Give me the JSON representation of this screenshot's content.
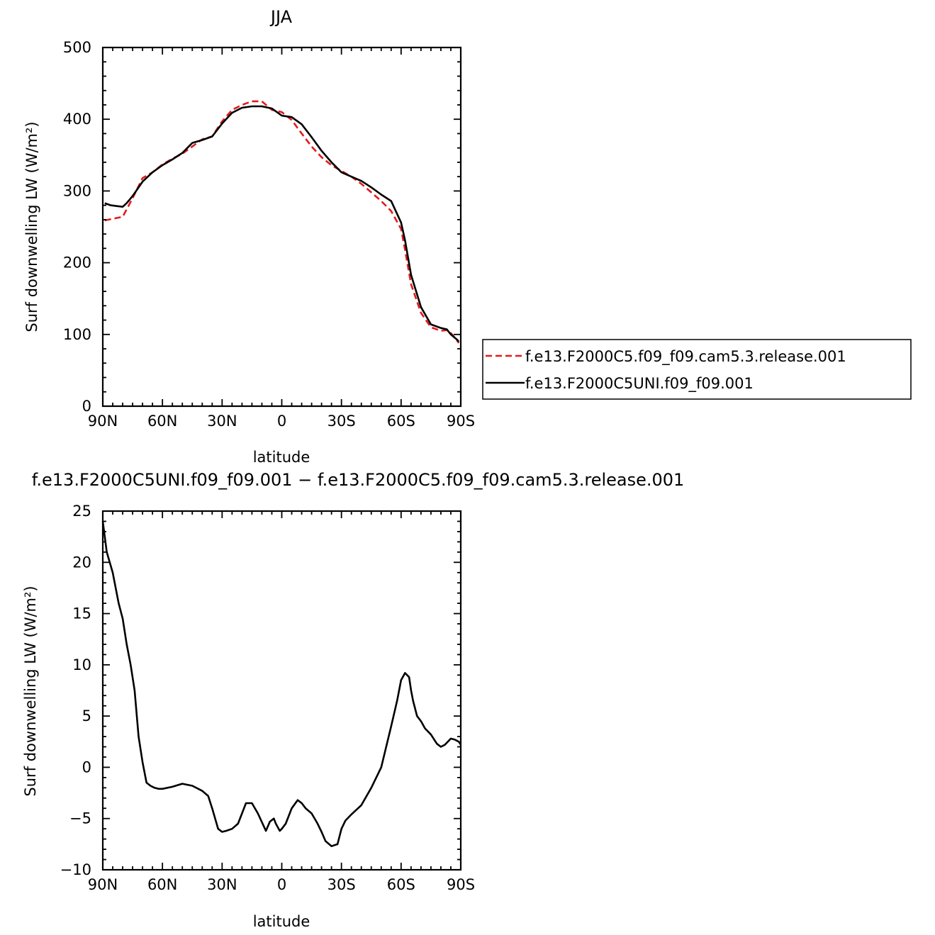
{
  "chart_data": [
    {
      "type": "line",
      "title": "JJA",
      "xlabel": "latitude",
      "ylabel": "Surf downwelling LW (W/m²)",
      "xlim": [
        90,
        -90
      ],
      "ylim": [
        0,
        500
      ],
      "x_ticks": [
        {
          "value": 90,
          "label": "90N"
        },
        {
          "value": 60,
          "label": "60N"
        },
        {
          "value": 30,
          "label": "30N"
        },
        {
          "value": 0,
          "label": "0"
        },
        {
          "value": -30,
          "label": "30S"
        },
        {
          "value": -60,
          "label": "60S"
        },
        {
          "value": -90,
          "label": "90S"
        }
      ],
      "y_ticks": [
        0,
        100,
        200,
        300,
        400,
        500
      ],
      "legend_position": "right",
      "series": [
        {
          "name": "f.e13.F2000C5.f09_f09.cam5.3.release.001",
          "color": "#e41a1c",
          "dash": "dashed",
          "x": [
            89,
            80,
            75,
            70,
            65,
            60,
            55,
            50,
            45,
            40,
            35,
            30,
            25,
            20,
            15,
            10,
            5,
            0,
            -5,
            -10,
            -15,
            -20,
            -25,
            -30,
            -35,
            -40,
            -45,
            -50,
            -55,
            -60,
            -62,
            -65,
            -70,
            -75,
            -80,
            -83,
            -85,
            -88,
            -89
          ],
          "values": [
            259,
            264,
            290,
            318,
            326,
            337,
            345,
            352,
            362,
            372,
            376,
            397,
            413,
            420,
            425,
            425,
            413,
            410,
            399,
            380,
            362,
            347,
            336,
            328,
            320,
            310,
            298,
            286,
            272,
            247,
            218,
            170,
            130,
            110,
            105,
            106,
            102,
            92,
            88
          ]
        },
        {
          "name": "f.e13.F2000C5UNI.f09_f09.001",
          "color": "#000000",
          "dash": "solid",
          "x": [
            89,
            86,
            83,
            80,
            78,
            75,
            70,
            65,
            60,
            55,
            50,
            45,
            40,
            35,
            30,
            25,
            20,
            15,
            10,
            5,
            0,
            -5,
            -10,
            -15,
            -20,
            -25,
            -30,
            -35,
            -40,
            -45,
            -50,
            -55,
            -60,
            -62,
            -65,
            -70,
            -75,
            -80,
            -83,
            -85,
            -88,
            -89
          ],
          "values": [
            283,
            280,
            279,
            278,
            283,
            293,
            313,
            326,
            336,
            344,
            353,
            367,
            371,
            376,
            394,
            409,
            416,
            418,
            418,
            415,
            405,
            403,
            393,
            375,
            356,
            340,
            326,
            320,
            314,
            305,
            295,
            286,
            256,
            231,
            183,
            138,
            114,
            109,
            107,
            100,
            93,
            90
          ]
        }
      ]
    },
    {
      "type": "line",
      "title": "f.e13.F2000C5UNI.f09_f09.001 − f.e13.F2000C5.f09_f09.cam5.3.release.001",
      "xlabel": "latitude",
      "ylabel": "Surf downwelling LW (W/m²)",
      "xlim": [
        90,
        -90
      ],
      "ylim": [
        -10,
        25
      ],
      "x_ticks": [
        {
          "value": 90,
          "label": "90N"
        },
        {
          "value": 60,
          "label": "60N"
        },
        {
          "value": 30,
          "label": "30N"
        },
        {
          "value": 0,
          "label": "0"
        },
        {
          "value": -30,
          "label": "30S"
        },
        {
          "value": -60,
          "label": "60S"
        },
        {
          "value": -90,
          "label": "90S"
        }
      ],
      "y_ticks": [
        -10,
        -5,
        0,
        5,
        10,
        15,
        20,
        25
      ],
      "series": [
        {
          "color": "#000000",
          "dash": "solid",
          "x": [
            90,
            88,
            85,
            82,
            80,
            78,
            76,
            74,
            72,
            70,
            68,
            66,
            64,
            62,
            60,
            55,
            50,
            45,
            40,
            37,
            35,
            32,
            30,
            28,
            25,
            22,
            18,
            15,
            12,
            8,
            6,
            4,
            3,
            1,
            0,
            -2,
            -5,
            -8,
            -10,
            -12,
            -15,
            -18,
            -20,
            -22,
            -25,
            -28,
            -30,
            -32,
            -35,
            -40,
            -45,
            -50,
            -55,
            -58,
            -60,
            -62,
            -64,
            -65,
            -66,
            -68,
            -70,
            -72,
            -75,
            -78,
            -80,
            -82,
            -85,
            -87,
            -89,
            -90
          ],
          "values": [
            24,
            21,
            19,
            16,
            14.5,
            12,
            10,
            7.5,
            3,
            0.5,
            -1.5,
            -1.8,
            -2,
            -2.1,
            -2.1,
            -1.9,
            -1.6,
            -1.8,
            -2.3,
            -2.8,
            -4,
            -6,
            -6.3,
            -6.2,
            -6,
            -5.5,
            -3.5,
            -3.5,
            -4.5,
            -6.2,
            -5.3,
            -5,
            -5.5,
            -6.2,
            -6,
            -5.5,
            -4,
            -3.2,
            -3.5,
            -4,
            -4.5,
            -5.5,
            -6.3,
            -7.2,
            -7.7,
            -7.5,
            -6,
            -5.2,
            -4.6,
            -3.7,
            -2,
            0,
            4,
            6.5,
            8.5,
            9.2,
            8.8,
            7.5,
            6.5,
            5,
            4.5,
            3.8,
            3.2,
            2.3,
            2,
            2.2,
            2.8,
            2.7,
            2.5,
            2.2
          ]
        }
      ]
    }
  ]
}
